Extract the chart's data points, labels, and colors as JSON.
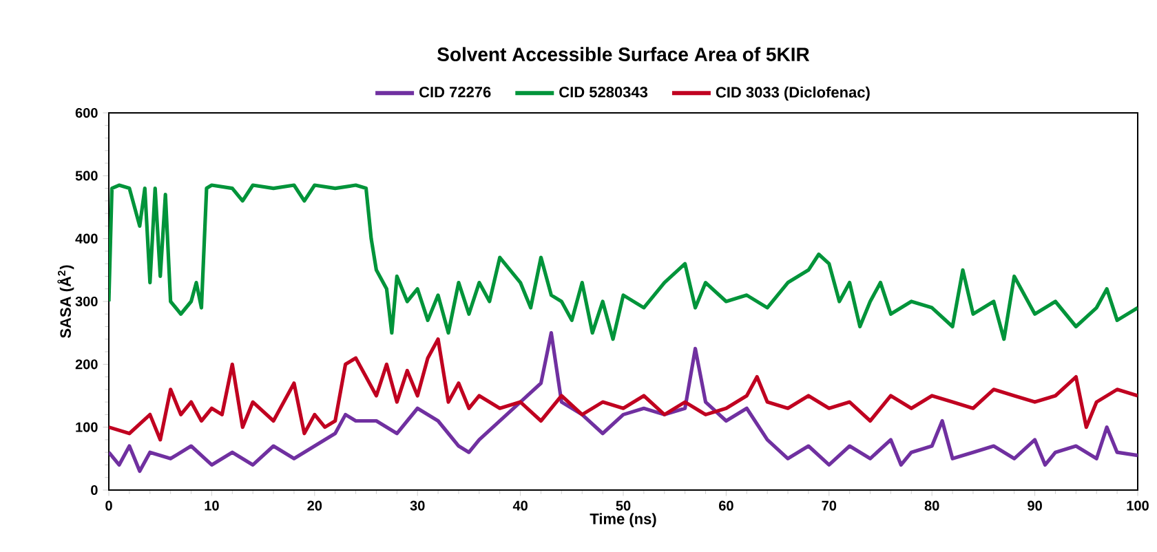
{
  "chart_data": {
    "type": "line",
    "title": "Solvent Accessible Surface Area of 5KIR",
    "xlabel": "Time (ns)",
    "ylabel": "SASA (Å$^{2}$)",
    "xlim": [
      0,
      100
    ],
    "ylim": [
      0,
      600
    ],
    "xticks": [
      0,
      10,
      20,
      30,
      40,
      50,
      60,
      70,
      80,
      90,
      100
    ],
    "yticks": [
      0,
      100,
      200,
      300,
      400,
      500,
      600
    ],
    "grid": false,
    "legend": "top",
    "marker": "none",
    "line_style": "solid",
    "series": [
      {
        "name": "CID 72276",
        "color": "#7030a0",
        "x": [
          0,
          1,
          2,
          3,
          4,
          6,
          8,
          10,
          12,
          14,
          16,
          18,
          20,
          22,
          23,
          24,
          26,
          28,
          30,
          32,
          34,
          35,
          36,
          38,
          40,
          42,
          43,
          44,
          46,
          48,
          50,
          52,
          54,
          56,
          57,
          58,
          60,
          62,
          64,
          66,
          68,
          70,
          72,
          74,
          76,
          77,
          78,
          80,
          81,
          82,
          84,
          86,
          88,
          90,
          91,
          92,
          94,
          96,
          97,
          98,
          100
        ],
        "values": [
          60,
          40,
          70,
          30,
          60,
          50,
          70,
          40,
          60,
          40,
          70,
          50,
          70,
          90,
          120,
          110,
          110,
          90,
          130,
          110,
          70,
          60,
          80,
          110,
          140,
          170,
          250,
          140,
          120,
          90,
          120,
          130,
          120,
          130,
          225,
          140,
          110,
          130,
          80,
          50,
          70,
          40,
          70,
          50,
          80,
          40,
          60,
          70,
          110,
          50,
          60,
          70,
          50,
          80,
          40,
          60,
          70,
          50,
          100,
          60,
          55
        ]
      },
      {
        "name": "CID 5280343",
        "color": "#00943a",
        "x": [
          0,
          0.3,
          1,
          2,
          3,
          3.5,
          4,
          4.5,
          5,
          5.5,
          6,
          7,
          8,
          8.5,
          9,
          9.5,
          10,
          12,
          13,
          14,
          16,
          18,
          19,
          20,
          22,
          24,
          25,
          25.5,
          26,
          27,
          27.5,
          28,
          29,
          30,
          31,
          32,
          33,
          34,
          35,
          36,
          37,
          38,
          40,
          41,
          42,
          43,
          44,
          45,
          46,
          47,
          48,
          49,
          50,
          52,
          54,
          56,
          57,
          58,
          60,
          62,
          64,
          66,
          68,
          69,
          70,
          71,
          72,
          73,
          74,
          75,
          76,
          78,
          80,
          82,
          83,
          84,
          86,
          87,
          88,
          90,
          92,
          94,
          96,
          97,
          98,
          100
        ],
        "values": [
          300,
          480,
          485,
          480,
          420,
          480,
          330,
          480,
          340,
          470,
          300,
          280,
          300,
          330,
          290,
          480,
          485,
          480,
          460,
          485,
          480,
          485,
          460,
          485,
          480,
          485,
          480,
          400,
          350,
          320,
          250,
          340,
          300,
          320,
          270,
          310,
          250,
          330,
          280,
          330,
          300,
          370,
          330,
          290,
          370,
          310,
          300,
          270,
          330,
          250,
          300,
          240,
          310,
          290,
          330,
          360,
          290,
          330,
          300,
          310,
          290,
          330,
          350,
          375,
          360,
          300,
          330,
          260,
          300,
          330,
          280,
          300,
          290,
          260,
          350,
          280,
          300,
          240,
          340,
          280,
          300,
          260,
          290,
          320,
          270,
          290
        ]
      },
      {
        "name": "CID 3033 (Diclofenac)",
        "color": "#c00020",
        "x": [
          0,
          2,
          4,
          5,
          6,
          7,
          8,
          9,
          10,
          11,
          12,
          13,
          14,
          16,
          18,
          19,
          20,
          21,
          22,
          23,
          24,
          25,
          26,
          27,
          28,
          29,
          30,
          31,
          32,
          33,
          34,
          35,
          36,
          38,
          40,
          42,
          44,
          46,
          48,
          50,
          52,
          54,
          56,
          58,
          60,
          62,
          63,
          64,
          66,
          68,
          70,
          72,
          74,
          76,
          78,
          80,
          82,
          84,
          86,
          88,
          90,
          92,
          94,
          95,
          96,
          98,
          100
        ],
        "values": [
          100,
          90,
          120,
          80,
          160,
          120,
          140,
          110,
          130,
          120,
          200,
          100,
          140,
          110,
          170,
          90,
          120,
          100,
          110,
          200,
          210,
          180,
          150,
          200,
          140,
          190,
          150,
          210,
          240,
          140,
          170,
          130,
          150,
          130,
          140,
          110,
          150,
          120,
          140,
          130,
          150,
          120,
          140,
          120,
          130,
          150,
          180,
          140,
          130,
          150,
          130,
          140,
          110,
          150,
          130,
          150,
          140,
          130,
          160,
          150,
          140,
          150,
          180,
          100,
          140,
          160,
          150
        ]
      }
    ]
  }
}
